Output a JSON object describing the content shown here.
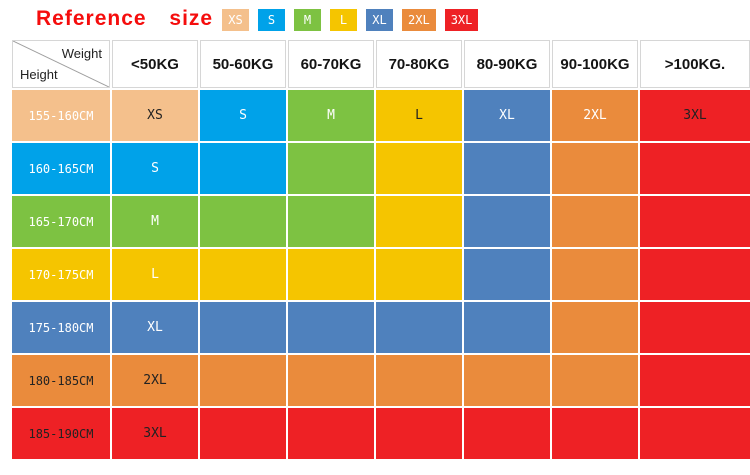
{
  "title": {
    "text": "Reference size"
  },
  "colors": {
    "title": "#f50d0d",
    "grid_line": "#ffffff",
    "header_border": "#d6d6d6",
    "sizes": {
      "XS": "#f4c08c",
      "S": "#00a2e9",
      "M": "#7dc242",
      "L": "#f5c500",
      "XL": "#4f81bd",
      "2XL": "#ea8b3c",
      "3XL": "#ee2125"
    }
  },
  "legend": [
    {
      "label": "XS",
      "text_color": "#ffffff"
    },
    {
      "label": "S",
      "text_color": "#ffffff"
    },
    {
      "label": "M",
      "text_color": "#ffffff"
    },
    {
      "label": "L",
      "text_color": "#ffffff"
    },
    {
      "label": "XL",
      "text_color": "#ffffff"
    },
    {
      "label": "2XL",
      "text_color": "#ffffff"
    },
    {
      "label": "3XL",
      "text_color": "#ffffff"
    }
  ],
  "table": {
    "corner": {
      "top": "Weight",
      "bottom": "Height"
    },
    "weight_headers": [
      "<50KG",
      "50-60KG",
      "60-70KG",
      "70-80KG",
      "80-90KG",
      "90-100KG",
      ">100KG."
    ],
    "rows": [
      {
        "height": "155-160CM",
        "height_text_color": "#ffffff",
        "cells": [
          {
            "size": "XS",
            "label": "XS",
            "text_color": "#222222"
          },
          {
            "size": "S",
            "label": "S",
            "text_color": "#ffffff"
          },
          {
            "size": "M",
            "label": "M",
            "text_color": "#ffffff"
          },
          {
            "size": "L",
            "label": "L",
            "text_color": "#222222"
          },
          {
            "size": "XL",
            "label": "XL",
            "text_color": "#ffffff"
          },
          {
            "size": "2XL",
            "label": "2XL",
            "text_color": "#ffffff"
          },
          {
            "size": "3XL",
            "label": "3XL",
            "text_color": "#222222"
          }
        ]
      },
      {
        "height": "160-165CM",
        "height_text_color": "#ffffff",
        "cells": [
          {
            "size": "S",
            "label": "S",
            "text_color": "#ffffff"
          },
          {
            "size": "S",
            "label": ""
          },
          {
            "size": "M",
            "label": ""
          },
          {
            "size": "L",
            "label": ""
          },
          {
            "size": "XL",
            "label": ""
          },
          {
            "size": "2XL",
            "label": ""
          },
          {
            "size": "3XL",
            "label": ""
          }
        ]
      },
      {
        "height": "165-170CM",
        "height_text_color": "#ffffff",
        "cells": [
          {
            "size": "M",
            "label": "M",
            "text_color": "#ffffff"
          },
          {
            "size": "M",
            "label": ""
          },
          {
            "size": "M",
            "label": ""
          },
          {
            "size": "L",
            "label": ""
          },
          {
            "size": "XL",
            "label": ""
          },
          {
            "size": "2XL",
            "label": ""
          },
          {
            "size": "3XL",
            "label": ""
          }
        ]
      },
      {
        "height": "170-175CM",
        "height_text_color": "#ffffff",
        "cells": [
          {
            "size": "L",
            "label": "L",
            "text_color": "#ffffff"
          },
          {
            "size": "L",
            "label": ""
          },
          {
            "size": "L",
            "label": ""
          },
          {
            "size": "L",
            "label": ""
          },
          {
            "size": "XL",
            "label": ""
          },
          {
            "size": "2XL",
            "label": ""
          },
          {
            "size": "3XL",
            "label": ""
          }
        ]
      },
      {
        "height": "175-180CM",
        "height_text_color": "#ffffff",
        "cells": [
          {
            "size": "XL",
            "label": "XL",
            "text_color": "#ffffff"
          },
          {
            "size": "XL",
            "label": ""
          },
          {
            "size": "XL",
            "label": ""
          },
          {
            "size": "XL",
            "label": ""
          },
          {
            "size": "XL",
            "label": ""
          },
          {
            "size": "2XL",
            "label": ""
          },
          {
            "size": "3XL",
            "label": ""
          }
        ]
      },
      {
        "height": "180-185CM",
        "height_text_color": "#222222",
        "cells": [
          {
            "size": "2XL",
            "label": "2XL",
            "text_color": "#222222"
          },
          {
            "size": "2XL",
            "label": ""
          },
          {
            "size": "2XL",
            "label": ""
          },
          {
            "size": "2XL",
            "label": ""
          },
          {
            "size": "2XL",
            "label": ""
          },
          {
            "size": "2XL",
            "label": ""
          },
          {
            "size": "3XL",
            "label": ""
          }
        ]
      },
      {
        "height": "185-190CM",
        "height_text_color": "#222222",
        "cells": [
          {
            "size": "3XL",
            "label": "3XL",
            "text_color": "#222222"
          },
          {
            "size": "3XL",
            "label": ""
          },
          {
            "size": "3XL",
            "label": ""
          },
          {
            "size": "3XL",
            "label": ""
          },
          {
            "size": "3XL",
            "label": ""
          },
          {
            "size": "3XL",
            "label": ""
          },
          {
            "size": "3XL",
            "label": ""
          }
        ]
      }
    ]
  },
  "chart_data": {
    "type": "table",
    "title": "Reference size",
    "x_header": "Weight",
    "y_header": "Height",
    "columns": [
      "<50KG",
      "50-60KG",
      "60-70KG",
      "70-80KG",
      "80-90KG",
      "90-100KG",
      ">100KG"
    ],
    "row_labels": [
      "155-160CM",
      "160-165CM",
      "165-170CM",
      "170-175CM",
      "175-180CM",
      "180-185CM",
      "185-190CM"
    ],
    "legend_sizes": [
      "XS",
      "S",
      "M",
      "L",
      "XL",
      "2XL",
      "3XL"
    ],
    "size_matrix": [
      [
        "XS",
        "S",
        "M",
        "L",
        "XL",
        "2XL",
        "3XL"
      ],
      [
        "S",
        "S",
        "M",
        "L",
        "XL",
        "2XL",
        "3XL"
      ],
      [
        "M",
        "M",
        "M",
        "L",
        "XL",
        "2XL",
        "3XL"
      ],
      [
        "L",
        "L",
        "L",
        "L",
        "XL",
        "2XL",
        "3XL"
      ],
      [
        "XL",
        "XL",
        "XL",
        "XL",
        "XL",
        "2XL",
        "3XL"
      ],
      [
        "2XL",
        "2XL",
        "2XL",
        "2XL",
        "2XL",
        "2XL",
        "3XL"
      ],
      [
        "3XL",
        "3XL",
        "3XL",
        "3XL",
        "3XL",
        "3XL",
        "3XL"
      ]
    ]
  }
}
